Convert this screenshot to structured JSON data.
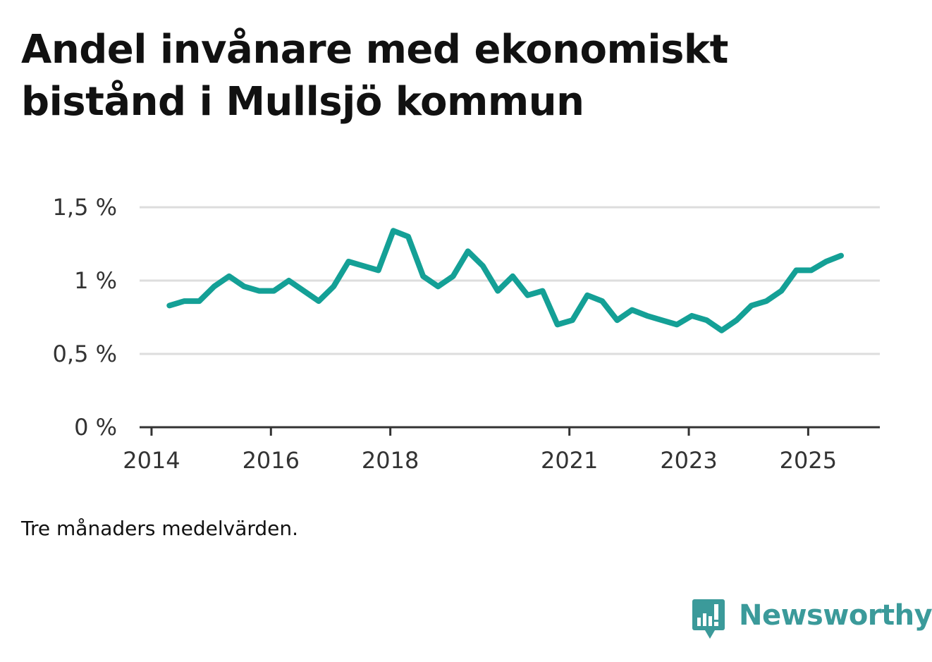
{
  "header": {
    "title_line1": "Andel invånare med ekonomiskt",
    "title_line2": "bistånd i Mullsjö kommun"
  },
  "footer": {
    "note": "Tre månaders medelvärden.",
    "brand": "Newsworthy"
  },
  "colors": {
    "line": "#14a096",
    "grid": "#dddddd",
    "axis": "#333333",
    "brand": "#3b9a9a"
  },
  "chart_data": {
    "type": "line",
    "title": "Andel invånare med ekonomiskt bistånd i Mullsjö kommun",
    "xlabel": "",
    "ylabel": "",
    "ylim": [
      0,
      1.5
    ],
    "xlim": [
      2013.8,
      2026.2
    ],
    "yticks": [
      0,
      0.5,
      1,
      1.5
    ],
    "ytick_labels": [
      "0 %",
      "0,5 %",
      "1 %",
      "1,5 %"
    ],
    "xticks": [
      2014,
      2016,
      2018,
      2021,
      2023,
      2025
    ],
    "xtick_labels": [
      "2014",
      "2016",
      "2018",
      "2021",
      "2023",
      "2025"
    ],
    "grid": true,
    "series": [
      {
        "name": "Andel invånare med ekonomiskt bistånd",
        "x": [
          2014.3,
          2014.55,
          2014.8,
          2015.05,
          2015.3,
          2015.55,
          2015.8,
          2016.05,
          2016.3,
          2016.55,
          2016.8,
          2017.05,
          2017.3,
          2017.55,
          2017.8,
          2018.05,
          2018.3,
          2018.55,
          2018.8,
          2019.05,
          2019.3,
          2019.55,
          2019.8,
          2020.05,
          2020.3,
          2020.55,
          2020.8,
          2021.05,
          2021.3,
          2021.55,
          2021.8,
          2022.05,
          2022.3,
          2022.55,
          2022.8,
          2023.05,
          2023.3,
          2023.55,
          2023.8,
          2024.05,
          2024.3,
          2024.55,
          2024.8,
          2025.05,
          2025.3,
          2025.55
        ],
        "values": [
          0.83,
          0.86,
          0.86,
          0.96,
          1.03,
          0.96,
          0.93,
          0.93,
          1.0,
          0.93,
          0.86,
          0.96,
          1.13,
          1.1,
          1.07,
          1.34,
          1.3,
          1.03,
          0.96,
          1.03,
          1.2,
          1.1,
          0.93,
          1.03,
          0.9,
          0.93,
          0.7,
          0.73,
          0.9,
          0.86,
          0.73,
          0.8,
          0.76,
          0.73,
          0.7,
          0.76,
          0.73,
          0.66,
          0.73,
          0.83,
          0.86,
          0.93,
          1.07,
          1.07,
          1.13,
          1.17
        ]
      }
    ]
  }
}
